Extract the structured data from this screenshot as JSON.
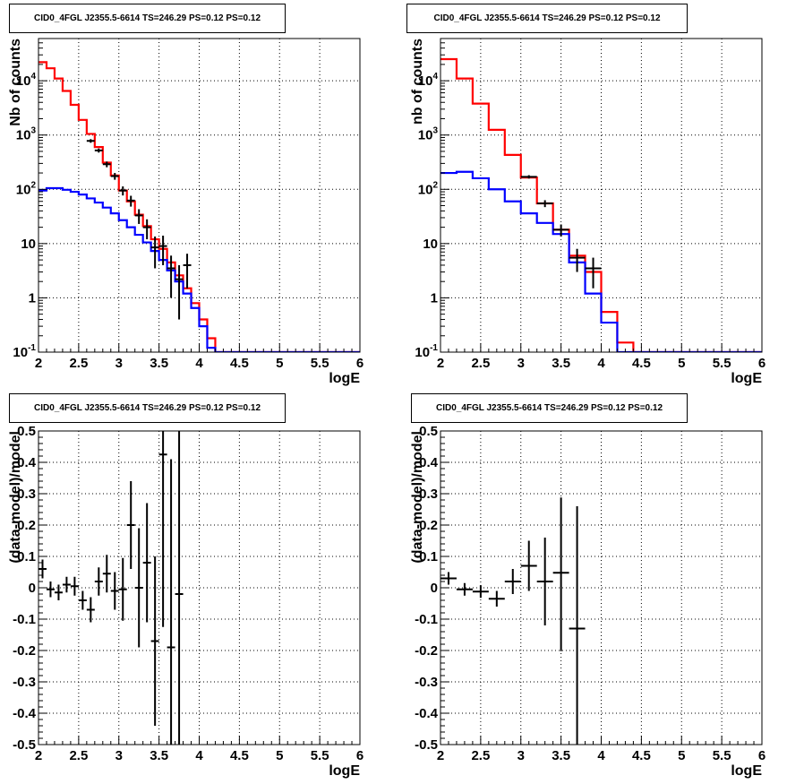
{
  "colors": {
    "data": "#000000",
    "total_model": "#ff0000",
    "component_model": "#0000ff"
  },
  "chart_data": [
    {
      "type": "line",
      "title": "CID0_4FGL J2355.5-6614 TS=246.29 PS=0.12 PS=0.12",
      "xlabel": "logE",
      "ylabel": "Nb of counts",
      "xlim": [
        2,
        6
      ],
      "ylim": [
        0.1,
        60000
      ],
      "yscale": "log",
      "grid": true,
      "x_ticks": [
        "2",
        "2.5",
        "3",
        "3.5",
        "4",
        "4.5",
        "5",
        "5.5",
        "6"
      ],
      "y_ticks": [
        "10^{-1}",
        "1",
        "10",
        "10^{2}",
        "10^{3}",
        "10^{4}"
      ],
      "bin_width": 0.1,
      "series": [
        {
          "kind": "histogram",
          "x": [
            2.0,
            2.1,
            2.2,
            2.3,
            2.4,
            2.5,
            2.6,
            2.7,
            2.8,
            2.9,
            3.0,
            3.1,
            3.2,
            3.3,
            3.4,
            3.5,
            3.6,
            3.7,
            3.8,
            3.9,
            4.0,
            4.1,
            4.2,
            4.3,
            4.4,
            4.5,
            4.6,
            4.7,
            4.8,
            4.9,
            5.0,
            5.1,
            5.2,
            5.3,
            5.4,
            5.5,
            5.6,
            5.7,
            5.8,
            5.9
          ],
          "values": [
            22000,
            17000,
            11000,
            6500,
            3600,
            1900,
            1050,
            600,
            310,
            180,
            95,
            60,
            34,
            21,
            12,
            8,
            4.5,
            2.6,
            1.5,
            0.8,
            0.4,
            0.18,
            0.1,
            0.1,
            0.1,
            0.1,
            0.1,
            0.1,
            0.1,
            0.1,
            0.1,
            0.1,
            0.1,
            0.1,
            0.1,
            0.1,
            0.1,
            0.1,
            0.1,
            0.1
          ]
        },
        {
          "kind": "histogram",
          "x": [
            2.0,
            2.1,
            2.2,
            2.3,
            2.4,
            2.5,
            2.6,
            2.7,
            2.8,
            2.9,
            3.0,
            3.1,
            3.2,
            3.3,
            3.4,
            3.5,
            3.6,
            3.7,
            3.8,
            3.9,
            4.0,
            4.1,
            4.2,
            4.3,
            4.4,
            4.5,
            4.6,
            4.7,
            4.8,
            4.9,
            5.0,
            5.1,
            5.2,
            5.3,
            5.4,
            5.5,
            5.6,
            5.7,
            5.8,
            5.9
          ],
          "values": [
            95,
            105,
            105,
            98,
            90,
            80,
            68,
            57,
            46,
            36,
            27,
            20,
            14.5,
            10.5,
            7.3,
            5,
            3.2,
            2,
            1.2,
            0.65,
            0.3,
            0.12,
            0.1,
            0.1,
            0.1,
            0.1,
            0.1,
            0.1,
            0.1,
            0.1,
            0.1,
            0.1,
            0.1,
            0.1,
            0.1,
            0.1,
            0.1,
            0.1,
            0.1,
            0.1
          ]
        },
        {
          "kind": "points",
          "x": [
            2.65,
            2.75,
            2.85,
            2.95,
            3.05,
            3.15,
            3.25,
            3.35,
            3.45,
            3.55,
            3.65,
            3.75,
            3.85
          ],
          "values": [
            780,
            520,
            290,
            175,
            95,
            62,
            33,
            20,
            8.5,
            9,
            3.5,
            2.2,
            4
          ],
          "err_lo": [
            60,
            45,
            35,
            25,
            18,
            14,
            10,
            8,
            5,
            5,
            2.5,
            1.8,
            2.5
          ],
          "err_hi": [
            60,
            45,
            35,
            25,
            18,
            14,
            10,
            8,
            5,
            5,
            2.5,
            1.8,
            2.5
          ]
        }
      ]
    },
    {
      "type": "line",
      "title": "CID0_4FGL J2355.5-6614 TS=246.29 PS=0.12 PS=0.12",
      "xlabel": "logE",
      "ylabel": "nb of counts",
      "xlim": [
        2,
        6
      ],
      "ylim": [
        0.1,
        60000
      ],
      "yscale": "log",
      "grid": true,
      "x_ticks": [
        "2",
        "2.5",
        "3",
        "3.5",
        "4",
        "4.5",
        "5",
        "5.5",
        "6"
      ],
      "y_ticks": [
        "10^{-1}",
        "1",
        "10",
        "10^{2}",
        "10^{3}",
        "10^{4}"
      ],
      "bin_width": 0.2,
      "series": [
        {
          "kind": "histogram",
          "x": [
            2.0,
            2.2,
            2.4,
            2.6,
            2.8,
            3.0,
            3.2,
            3.4,
            3.6,
            3.8,
            4.0,
            4.2,
            4.4,
            4.6,
            4.8,
            5.0,
            5.2,
            5.4,
            5.6,
            5.8
          ],
          "values": [
            25000,
            11000,
            3800,
            1250,
            430,
            165,
            55,
            18,
            6,
            3,
            0.55,
            0.15,
            0.1,
            0.1,
            0.1,
            0.1,
            0.1,
            0.1,
            0.1,
            0.1
          ]
        },
        {
          "kind": "histogram",
          "x": [
            2.0,
            2.2,
            2.4,
            2.6,
            2.8,
            3.0,
            3.2,
            3.4,
            3.6,
            3.8,
            4.0,
            4.2,
            4.4,
            4.6,
            4.8,
            5.0,
            5.2,
            5.4,
            5.6,
            5.8
          ],
          "values": [
            200,
            210,
            160,
            100,
            60,
            36,
            24,
            15,
            4.5,
            1.2,
            0.35,
            0.1,
            0.1,
            0.1,
            0.1,
            0.1,
            0.1,
            0.1,
            0.1,
            0.1
          ]
        },
        {
          "kind": "points",
          "x": [
            3.1,
            3.3,
            3.5,
            3.7,
            3.9
          ],
          "values": [
            170,
            55,
            18,
            5.5,
            3.5
          ],
          "err_lo": [
            12,
            8,
            4.5,
            2.5,
            2
          ],
          "err_hi": [
            12,
            8,
            4.5,
            2.5,
            2
          ]
        }
      ]
    },
    {
      "type": "scatter",
      "title": "CID0_4FGL J2355.5-6614 TS=246.29 PS=0.12 PS=0.12",
      "xlabel": "logE",
      "ylabel": "(data-model)/model",
      "xlim": [
        2,
        6
      ],
      "ylim": [
        -0.5,
        0.5
      ],
      "grid": true,
      "x_ticks": [
        "2",
        "2.5",
        "3",
        "3.5",
        "4",
        "4.5",
        "5",
        "5.5",
        "6"
      ],
      "y_ticks": [
        "-0.5",
        "-0.4",
        "-0.3",
        "-0.2",
        "-0.1",
        "0",
        "0.1",
        "0.2",
        "0.3",
        "0.4",
        "0.5"
      ],
      "bin_width": 0.1,
      "series": [
        {
          "kind": "points",
          "x": [
            2.05,
            2.15,
            2.25,
            2.35,
            2.45,
            2.55,
            2.65,
            2.75,
            2.85,
            2.95,
            3.05,
            3.15,
            3.25,
            3.35,
            3.45,
            3.55,
            3.65,
            3.75
          ],
          "values": [
            0.06,
            -0.005,
            -0.015,
            0.01,
            0.005,
            -0.04,
            -0.07,
            0.02,
            0.045,
            -0.01,
            -0.005,
            0.2,
            0.0,
            0.08,
            -0.17,
            0.425,
            -0.19,
            -0.02
          ],
          "err_lo": [
            0.03,
            0.025,
            0.025,
            0.025,
            0.03,
            0.03,
            0.04,
            0.045,
            0.06,
            0.06,
            0.1,
            0.14,
            0.19,
            0.19,
            0.27,
            0.55,
            0.6,
            0.6
          ],
          "err_hi": [
            0.03,
            0.025,
            0.025,
            0.025,
            0.03,
            0.03,
            0.04,
            0.045,
            0.06,
            0.06,
            0.1,
            0.14,
            0.19,
            0.19,
            0.27,
            0.55,
            0.6,
            0.6
          ]
        }
      ]
    },
    {
      "type": "scatter",
      "title": "CID0_4FGL J2355.5-6614 TS=246.29 PS=0.12 PS=0.12",
      "xlabel": "logE",
      "ylabel": "(data-model)/model",
      "xlim": [
        2,
        6
      ],
      "ylim": [
        -0.5,
        0.5
      ],
      "grid": true,
      "x_ticks": [
        "2",
        "2.5",
        "3",
        "3.5",
        "4",
        "4.5",
        "5",
        "5.5",
        "6"
      ],
      "y_ticks": [
        "-0.5",
        "-0.4",
        "-0.3",
        "-0.2",
        "-0.1",
        "0",
        "0.1",
        "0.2",
        "0.3",
        "0.4",
        "0.5"
      ],
      "bin_width": 0.2,
      "series": [
        {
          "kind": "points",
          "x": [
            2.1,
            2.3,
            2.5,
            2.7,
            2.9,
            3.1,
            3.3,
            3.5,
            3.7
          ],
          "values": [
            0.03,
            -0.005,
            -0.012,
            -0.035,
            0.02,
            0.07,
            0.02,
            0.048,
            -0.13
          ],
          "err_lo": [
            0.02,
            0.02,
            0.02,
            0.025,
            0.04,
            0.08,
            0.14,
            0.25,
            0.4
          ],
          "err_hi": [
            0.02,
            0.02,
            0.02,
            0.025,
            0.04,
            0.08,
            0.14,
            0.24,
            0.39
          ]
        }
      ]
    }
  ]
}
